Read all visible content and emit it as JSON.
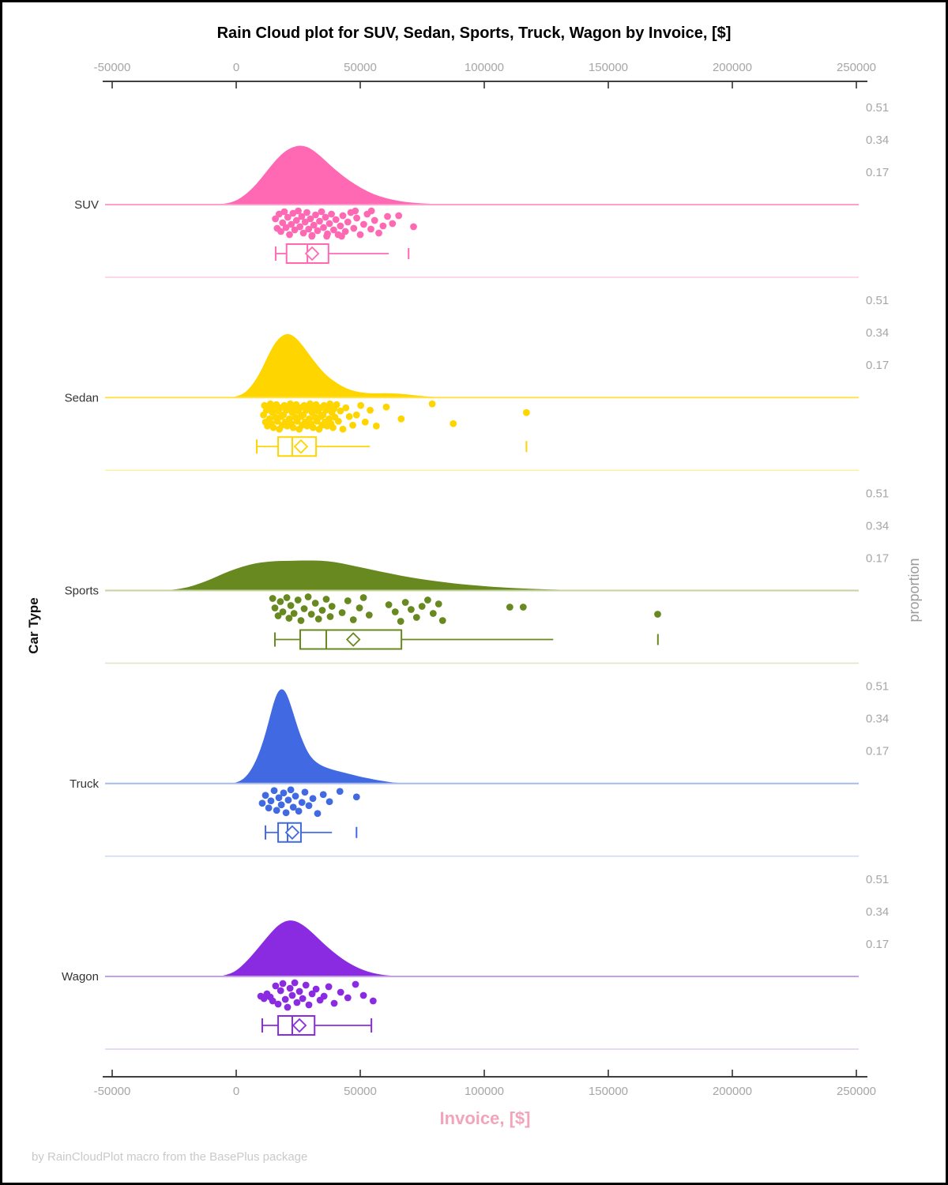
{
  "title": "Rain Cloud plot for SUV, Sedan, Sports, Truck, Wagon by Invoice, [$]",
  "footer": "by RainCloudPlot macro from the BasePlus package",
  "axes": {
    "car_type_label": "Car Type",
    "proportion_label": "proportion"
  },
  "colors": {
    "axis_line": "#000000",
    "tick_label": "#a6a6a6",
    "x_title_pink": "#f2a4ba",
    "footer_gray": "#c9c9c9"
  },
  "chart_data": {
    "type": "raincloud",
    "title": "Rain Cloud plot for SUV, Sedan, Sports, Truck, Wagon by Invoice, [$]",
    "xlabel": "Invoice, [$]",
    "ylabel_left": "Car Type",
    "ylabel_right": "proportion",
    "x_axis": {
      "min": -50000,
      "max": 250000,
      "ticks": [
        -50000,
        0,
        50000,
        100000,
        150000,
        200000,
        250000
      ]
    },
    "proportion_ticks": [
      0.17,
      0.34,
      0.51
    ],
    "categories": [
      "SUV",
      "Sedan",
      "Sports",
      "Truck",
      "Wagon"
    ],
    "series": [
      {
        "name": "SUV",
        "color": "#ff69b4",
        "line_color": "#ff9ecd",
        "separator_color": "#ffc9e3",
        "density": [
          [
            -8000,
            0
          ],
          [
            -4000,
            0.005
          ],
          [
            0,
            0.02
          ],
          [
            4000,
            0.055
          ],
          [
            8000,
            0.105
          ],
          [
            12000,
            0.17
          ],
          [
            16000,
            0.235
          ],
          [
            20000,
            0.285
          ],
          [
            24000,
            0.308
          ],
          [
            27000,
            0.31
          ],
          [
            30000,
            0.295
          ],
          [
            34000,
            0.255
          ],
          [
            38000,
            0.205
          ],
          [
            43000,
            0.15
          ],
          [
            48000,
            0.105
          ],
          [
            53000,
            0.068
          ],
          [
            58000,
            0.042
          ],
          [
            63000,
            0.025
          ],
          [
            68000,
            0.014
          ],
          [
            74000,
            0.007
          ],
          [
            80000,
            0.003
          ],
          [
            88000,
            0
          ]
        ],
        "points": {
          "values": [
            15800,
            16500,
            17300,
            18000,
            18700,
            19400,
            20100,
            20800,
            21500,
            22200,
            22900,
            23600,
            24300,
            25000,
            25700,
            26400,
            27100,
            27800,
            28500,
            29200,
            29900,
            30600,
            31300,
            32000,
            32800,
            33600,
            34400,
            35200,
            36000,
            36800,
            37600,
            38400,
            39300,
            40200,
            41100,
            42000,
            43000,
            44000,
            45000,
            46200,
            47400,
            48600,
            50000,
            51400,
            52800,
            54300,
            55800,
            57500,
            59200,
            61000,
            63000,
            54500,
            48000,
            42500,
            36500,
            65500,
            71500,
            30500
          ],
          "dy": [
            18,
            30,
            12,
            34,
            23,
            9,
            29,
            16,
            38,
            25,
            11,
            32,
            20,
            8,
            28,
            15,
            36,
            22,
            10,
            31,
            18,
            39,
            26,
            13,
            33,
            21,
            9,
            29,
            16,
            37,
            24,
            12,
            32,
            19,
            38,
            27,
            14,
            34,
            22,
            10,
            30,
            17,
            38,
            25,
            12,
            31,
            20,
            36,
            27,
            15,
            24,
            8,
            8,
            40,
            40,
            14,
            28,
            40
          ]
        },
        "box": {
          "whisker_low": 15900,
          "q1": 20300,
          "median": 28700,
          "q3": 37200,
          "whisker_high": 61500,
          "mean": 30600,
          "outliers": [
            69500
          ],
          "left_cap": true,
          "right_cap": false
        }
      },
      {
        "name": "Sedan",
        "color": "#ffd500",
        "line_color": "#ffe24d",
        "separator_color": "#ffefa0",
        "density": [
          [
            -2000,
            0
          ],
          [
            1000,
            0.008
          ],
          [
            4000,
            0.03
          ],
          [
            7000,
            0.075
          ],
          [
            10000,
            0.14
          ],
          [
            13000,
            0.225
          ],
          [
            16000,
            0.295
          ],
          [
            19000,
            0.33
          ],
          [
            21500,
            0.335
          ],
          [
            24000,
            0.315
          ],
          [
            27000,
            0.27
          ],
          [
            30000,
            0.215
          ],
          [
            33000,
            0.165
          ],
          [
            36000,
            0.12
          ],
          [
            40000,
            0.08
          ],
          [
            44000,
            0.05
          ],
          [
            48000,
            0.032
          ],
          [
            52000,
            0.024
          ],
          [
            56000,
            0.022
          ],
          [
            60000,
            0.023
          ],
          [
            64000,
            0.022
          ],
          [
            68000,
            0.018
          ],
          [
            72000,
            0.012
          ],
          [
            76000,
            0.007
          ],
          [
            80000,
            0.003
          ],
          [
            85000,
            0
          ]
        ],
        "points": {
          "values": [
            11000,
            11400,
            11800,
            12200,
            12600,
            13000,
            13400,
            13800,
            14200,
            14600,
            15000,
            15400,
            15800,
            16200,
            16600,
            17000,
            17400,
            17800,
            18200,
            18600,
            19000,
            19400,
            19800,
            20200,
            20600,
            21000,
            21400,
            21800,
            22200,
            22600,
            23000,
            23400,
            23800,
            24200,
            24600,
            25000,
            25400,
            25800,
            26200,
            26600,
            27000,
            27400,
            27800,
            28200,
            28600,
            29000,
            29400,
            29800,
            30200,
            30600,
            31000,
            31400,
            31800,
            32200,
            32600,
            33000,
            33400,
            33800,
            34200,
            34600,
            35000,
            35400,
            35800,
            36200,
            36600,
            37000,
            37400,
            37800,
            38200,
            38600,
            39000,
            39400,
            39800,
            40500,
            41200,
            42000,
            43000,
            44200,
            45600,
            47000,
            48500,
            50200,
            52000,
            54000,
            56500,
            60500,
            66500,
            79000,
            87500,
            117000
          ],
          "dy": [
            22,
            10,
            31,
            16,
            36,
            12,
            27,
            8,
            33,
            19,
            38,
            14,
            25,
            9,
            30,
            17,
            40,
            13,
            24,
            35
          ]
        },
        "box": {
          "whisker_low": 8300,
          "q1": 16900,
          "median": 22600,
          "q3": 32200,
          "whisker_high": 53900,
          "mean": 26100,
          "outliers": [
            117000
          ],
          "left_cap": true,
          "right_cap": false
        }
      },
      {
        "name": "Sports",
        "color": "#68891f",
        "line_color": "#c6d2a2",
        "separator_color": "#dde6c6",
        "density": [
          [
            -30000,
            0
          ],
          [
            -25000,
            0.005
          ],
          [
            -20000,
            0.015
          ],
          [
            -15000,
            0.035
          ],
          [
            -10000,
            0.06
          ],
          [
            -5000,
            0.09
          ],
          [
            0,
            0.115
          ],
          [
            5000,
            0.135
          ],
          [
            10000,
            0.148
          ],
          [
            16000,
            0.155
          ],
          [
            22000,
            0.156
          ],
          [
            28000,
            0.158
          ],
          [
            34000,
            0.157
          ],
          [
            40000,
            0.15
          ],
          [
            46000,
            0.133
          ],
          [
            52000,
            0.117
          ],
          [
            58000,
            0.1
          ],
          [
            64000,
            0.084
          ],
          [
            70000,
            0.069
          ],
          [
            77000,
            0.055
          ],
          [
            84000,
            0.043
          ],
          [
            91000,
            0.033
          ],
          [
            98000,
            0.025
          ],
          [
            105000,
            0.018
          ],
          [
            112000,
            0.013
          ],
          [
            119000,
            0.009
          ],
          [
            126000,
            0.006
          ],
          [
            133000,
            0.003
          ],
          [
            140000,
            0.001
          ],
          [
            148000,
            0
          ]
        ],
        "points": {
          "values": [
            14700,
            15600,
            16900,
            17800,
            18800,
            20400,
            21300,
            22000,
            23300,
            24900,
            26100,
            27400,
            29000,
            30300,
            31900,
            33200,
            34700,
            36300,
            37900,
            38600,
            42700,
            45000,
            47200,
            49700,
            51300,
            53600,
            61500,
            64100,
            66300,
            68200,
            70500,
            72700,
            74900,
            77200,
            79400,
            81600,
            83200,
            110300,
            115700,
            169900
          ],
          "dy": [
            10,
            22,
            32,
            14,
            27,
            9,
            35,
            19,
            29,
            12,
            38,
            23,
            8,
            30,
            16,
            36,
            25,
            11,
            33,
            20,
            28,
            13,
            37,
            22,
            9,
            31,
            18,
            27,
            39,
            15,
            24,
            34,
            20,
            12,
            29,
            17,
            38,
            21,
            21,
            30
          ]
        },
        "box": {
          "whisker_low": 15600,
          "q1": 25800,
          "median": 36300,
          "q3": 66600,
          "whisker_high": 127800,
          "mean": 47200,
          "outliers": [
            170000
          ],
          "left_cap": true,
          "right_cap": false
        }
      },
      {
        "name": "Truck",
        "color": "#4169e1",
        "line_color": "#a5bbee",
        "separator_color": "#cdd9f6",
        "density": [
          [
            -1500,
            0
          ],
          [
            1000,
            0.008
          ],
          [
            3500,
            0.03
          ],
          [
            6000,
            0.07
          ],
          [
            8500,
            0.135
          ],
          [
            11000,
            0.225
          ],
          [
            13000,
            0.32
          ],
          [
            15000,
            0.42
          ],
          [
            16500,
            0.475
          ],
          [
            18000,
            0.497
          ],
          [
            19500,
            0.49
          ],
          [
            21000,
            0.45
          ],
          [
            23000,
            0.37
          ],
          [
            25000,
            0.285
          ],
          [
            27000,
            0.215
          ],
          [
            29000,
            0.16
          ],
          [
            31000,
            0.125
          ],
          [
            33500,
            0.1
          ],
          [
            36000,
            0.085
          ],
          [
            39000,
            0.072
          ],
          [
            42000,
            0.062
          ],
          [
            45000,
            0.052
          ],
          [
            48000,
            0.042
          ],
          [
            51000,
            0.033
          ],
          [
            54000,
            0.025
          ],
          [
            57000,
            0.018
          ],
          [
            60000,
            0.011
          ],
          [
            63000,
            0.006
          ],
          [
            66000,
            0.002
          ],
          [
            69000,
            0
          ]
        ],
        "points": {
          "values": [
            10500,
            11800,
            13100,
            14000,
            15300,
            16300,
            17200,
            18200,
            19100,
            20100,
            21000,
            22000,
            23000,
            23900,
            25200,
            26500,
            27700,
            29300,
            30900,
            32800,
            35100,
            37600,
            41800,
            48500
          ],
          "dy": [
            25,
            15,
            31,
            22,
            9,
            34,
            18,
            27,
            12,
            37,
            21,
            8,
            30,
            16,
            35,
            24,
            11,
            28,
            19,
            38,
            14,
            23,
            10,
            17
          ]
        },
        "box": {
          "whisker_low": 11800,
          "q1": 16900,
          "median": 20700,
          "q3": 26100,
          "whisker_high": 38600,
          "mean": 22600,
          "outliers": [
            48500
          ],
          "left_cap": true,
          "right_cap": false
        }
      },
      {
        "name": "Wagon",
        "color": "#8a2be2",
        "line_color": "#c4a0ec",
        "separator_color": "#e1cdf5",
        "density": [
          [
            -7000,
            0
          ],
          [
            -3500,
            0.008
          ],
          [
            0,
            0.03
          ],
          [
            3500,
            0.07
          ],
          [
            7000,
            0.12
          ],
          [
            10500,
            0.175
          ],
          [
            14000,
            0.23
          ],
          [
            17000,
            0.27
          ],
          [
            20000,
            0.292
          ],
          [
            22500,
            0.295
          ],
          [
            25000,
            0.285
          ],
          [
            28000,
            0.26
          ],
          [
            31500,
            0.22
          ],
          [
            35000,
            0.175
          ],
          [
            39000,
            0.13
          ],
          [
            43000,
            0.09
          ],
          [
            47000,
            0.058
          ],
          [
            51000,
            0.034
          ],
          [
            55000,
            0.018
          ],
          [
            59000,
            0.008
          ],
          [
            63000,
            0.003
          ],
          [
            67000,
            0
          ]
        ],
        "points": {
          "values": [
            9900,
            11200,
            12400,
            13700,
            14700,
            15900,
            16900,
            17900,
            18800,
            19800,
            20700,
            21700,
            22600,
            23600,
            24500,
            25500,
            26800,
            28100,
            29300,
            30600,
            32200,
            33800,
            35400,
            37300,
            39500,
            42100,
            45000,
            48100,
            51300,
            55200
          ],
          "dy": [
            25,
            28,
            22,
            26,
            31,
            12,
            35,
            18,
            9,
            29,
            39,
            15,
            24,
            8,
            33,
            19,
            28,
            11,
            36,
            22,
            16,
            30,
            25,
            13,
            34,
            20,
            27,
            10,
            24,
            31
          ]
        },
        "box": {
          "whisker_low": 10500,
          "q1": 16900,
          "median": 22600,
          "q3": 31600,
          "whisker_high": 54500,
          "mean": 25500,
          "outliers": [],
          "left_cap": true,
          "right_cap": true
        }
      }
    ]
  }
}
